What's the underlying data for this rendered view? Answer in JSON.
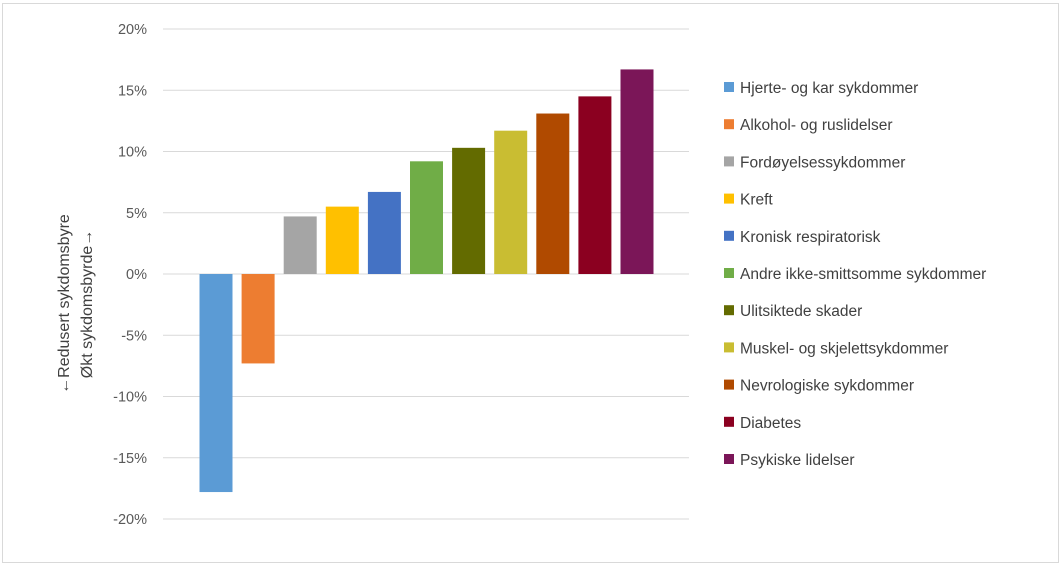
{
  "colors": {
    "gridline": "#d9d9d9",
    "tick_text": "#595959",
    "legend_text": "#404040"
  },
  "chart_data": {
    "type": "bar",
    "title": "",
    "ylabel_lines": [
      "←Redusert sykdomsbyre",
      "Økt sykdomsbyrde→"
    ],
    "ylim": [
      -0.2,
      0.2
    ],
    "yticks": [
      0.2,
      0.15,
      0.1,
      0.05,
      0.0,
      -0.05,
      -0.1,
      -0.15,
      -0.2
    ],
    "ytick_labels": [
      "20%",
      "15%",
      "10%",
      "5%",
      "0%",
      "-5%",
      "-10%",
      "-15%",
      "-20%"
    ],
    "grid": true,
    "legend_position": "right",
    "series": [
      {
        "name": "Hjerte- og kar sykdommer",
        "value": -0.178,
        "color": "#5b9bd5"
      },
      {
        "name": "Alkohol- og ruslidelser",
        "value": -0.073,
        "color": "#ed7d31"
      },
      {
        "name": "Fordøyelsessykdommer",
        "value": 0.047,
        "color": "#a5a5a5"
      },
      {
        "name": "Kreft",
        "value": 0.055,
        "color": "#ffc000"
      },
      {
        "name": "Kronisk respiratorisk",
        "value": 0.067,
        "color": "#4472c4"
      },
      {
        "name": "Andre ikke-smittsomme sykdommer",
        "value": 0.092,
        "color": "#70ad47"
      },
      {
        "name": "Ulitsiktede skader",
        "value": 0.103,
        "color": "#636b00"
      },
      {
        "name": "Muskel- og skjelettsykdommer",
        "value": 0.117,
        "color": "#c9bd32"
      },
      {
        "name": "Nevrologiske sykdommer",
        "value": 0.131,
        "color": "#b04a00"
      },
      {
        "name": "Diabetes",
        "value": 0.145,
        "color": "#8b0020"
      },
      {
        "name": "Psykiske lidelser",
        "value": 0.167,
        "color": "#7b1658"
      }
    ]
  }
}
